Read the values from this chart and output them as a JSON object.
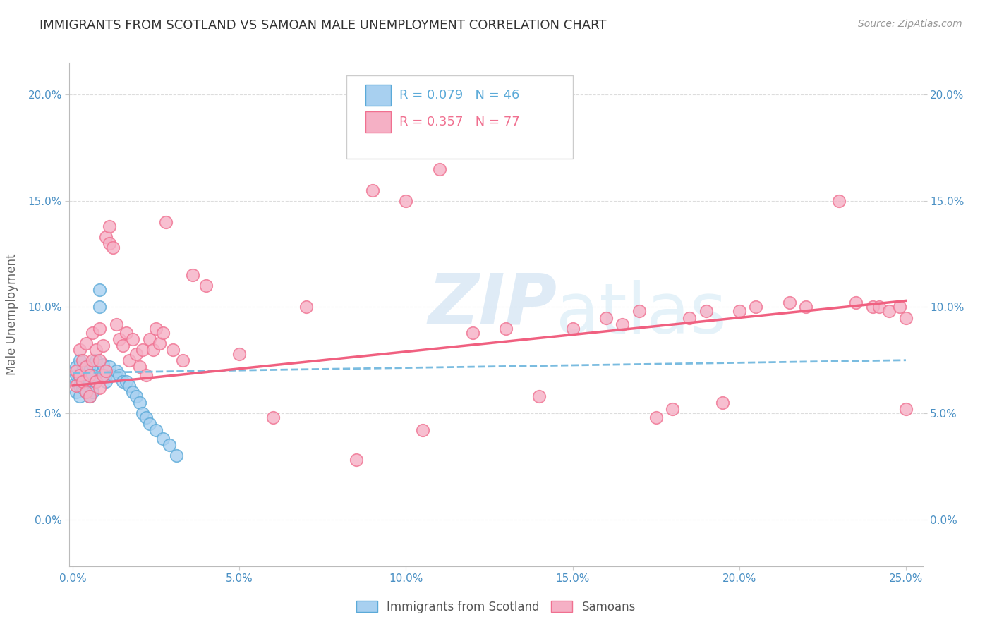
{
  "title": "IMMIGRANTS FROM SCOTLAND VS SAMOAN MALE UNEMPLOYMENT CORRELATION CHART",
  "source": "Source: ZipAtlas.com",
  "xlabel_ticks": [
    "0.0%",
    "5.0%",
    "10.0%",
    "15.0%",
    "20.0%",
    "25.0%"
  ],
  "xlabel_vals": [
    0.0,
    0.05,
    0.1,
    0.15,
    0.2,
    0.25
  ],
  "ylabel_ticks": [
    "0.0%",
    "5.0%",
    "10.0%",
    "15.0%",
    "20.0%"
  ],
  "ylabel_vals": [
    0.0,
    0.05,
    0.1,
    0.15,
    0.2
  ],
  "xlim": [
    -0.001,
    0.255
  ],
  "ylim": [
    -0.022,
    0.215
  ],
  "scotland_R": 0.079,
  "scotland_N": 46,
  "samoan_R": 0.357,
  "samoan_N": 77,
  "scotland_color": "#A8D0F0",
  "samoan_color": "#F5B0C5",
  "scotland_edge_color": "#5BAAD8",
  "samoan_edge_color": "#F07090",
  "samoan_line_color": "#F06080",
  "scotland_line_color": "#7ABCE0",
  "watermark_zip": "ZIP",
  "watermark_atlas": "atlas",
  "scotland_x": [
    0.001,
    0.001,
    0.001,
    0.001,
    0.002,
    0.002,
    0.002,
    0.002,
    0.003,
    0.003,
    0.003,
    0.003,
    0.004,
    0.004,
    0.004,
    0.005,
    0.005,
    0.005,
    0.006,
    0.006,
    0.006,
    0.007,
    0.007,
    0.008,
    0.008,
    0.009,
    0.009,
    0.01,
    0.01,
    0.011,
    0.012,
    0.013,
    0.014,
    0.015,
    0.016,
    0.017,
    0.018,
    0.019,
    0.02,
    0.021,
    0.022,
    0.023,
    0.025,
    0.027,
    0.029,
    0.031
  ],
  "scotland_y": [
    0.065,
    0.068,
    0.072,
    0.06,
    0.063,
    0.067,
    0.058,
    0.075,
    0.062,
    0.07,
    0.066,
    0.064,
    0.068,
    0.072,
    0.06,
    0.065,
    0.07,
    0.058,
    0.073,
    0.06,
    0.068,
    0.075,
    0.065,
    0.1,
    0.108,
    0.07,
    0.073,
    0.065,
    0.068,
    0.072,
    0.068,
    0.07,
    0.068,
    0.065,
    0.065,
    0.063,
    0.06,
    0.058,
    0.055,
    0.05,
    0.048,
    0.045,
    0.042,
    0.038,
    0.035,
    0.03
  ],
  "samoan_x": [
    0.001,
    0.001,
    0.002,
    0.002,
    0.003,
    0.003,
    0.004,
    0.004,
    0.004,
    0.005,
    0.005,
    0.006,
    0.006,
    0.007,
    0.007,
    0.008,
    0.008,
    0.008,
    0.009,
    0.009,
    0.01,
    0.01,
    0.011,
    0.011,
    0.012,
    0.013,
    0.014,
    0.015,
    0.016,
    0.017,
    0.018,
    0.019,
    0.02,
    0.021,
    0.022,
    0.023,
    0.024,
    0.025,
    0.026,
    0.027,
    0.028,
    0.03,
    0.033,
    0.036,
    0.04,
    0.05,
    0.06,
    0.07,
    0.085,
    0.09,
    0.1,
    0.105,
    0.11,
    0.12,
    0.13,
    0.14,
    0.15,
    0.16,
    0.165,
    0.17,
    0.175,
    0.18,
    0.185,
    0.19,
    0.195,
    0.2,
    0.205,
    0.215,
    0.22,
    0.23,
    0.235,
    0.24,
    0.242,
    0.245,
    0.248,
    0.25,
    0.25
  ],
  "samoan_y": [
    0.063,
    0.07,
    0.068,
    0.08,
    0.065,
    0.075,
    0.06,
    0.072,
    0.083,
    0.058,
    0.068,
    0.075,
    0.088,
    0.065,
    0.08,
    0.062,
    0.075,
    0.09,
    0.068,
    0.082,
    0.07,
    0.133,
    0.13,
    0.138,
    0.128,
    0.092,
    0.085,
    0.082,
    0.088,
    0.075,
    0.085,
    0.078,
    0.072,
    0.08,
    0.068,
    0.085,
    0.08,
    0.09,
    0.083,
    0.088,
    0.14,
    0.08,
    0.075,
    0.115,
    0.11,
    0.078,
    0.048,
    0.1,
    0.028,
    0.155,
    0.15,
    0.042,
    0.165,
    0.088,
    0.09,
    0.058,
    0.09,
    0.095,
    0.092,
    0.098,
    0.048,
    0.052,
    0.095,
    0.098,
    0.055,
    0.098,
    0.1,
    0.102,
    0.1,
    0.15,
    0.102,
    0.1,
    0.1,
    0.098,
    0.1,
    0.052,
    0.095
  ]
}
